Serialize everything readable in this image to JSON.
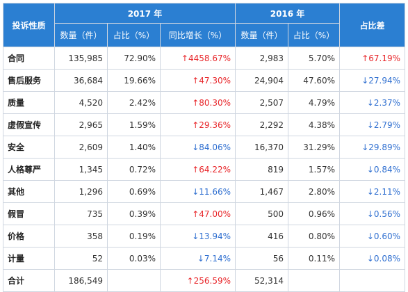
{
  "header": {
    "category": "投诉性质",
    "year2017": "2017 年",
    "year2016": "2016 年",
    "change": "占比差",
    "cols2017": [
      "数量（件）",
      "占比（%）",
      "同比增长（%）"
    ],
    "cols2016": [
      "数量（件）",
      "占比（%）"
    ]
  },
  "rows": [
    {
      "name": "合同",
      "q17": "135,985",
      "p17": "72.90%",
      "g": "↑4458.67%",
      "gdir": "up",
      "q16": "2,983",
      "p16": "5.70%",
      "d": "↑67.19%",
      "ddir": "up"
    },
    {
      "name": "售后服务",
      "q17": "36,684",
      "p17": "19.66%",
      "g": "↑47.30%",
      "gdir": "up",
      "q16": "24,904",
      "p16": "47.60%",
      "d": "↓27.94%",
      "ddir": "down"
    },
    {
      "name": "质量",
      "q17": "4,520",
      "p17": "2.42%",
      "g": "↑80.30%",
      "gdir": "up",
      "q16": "2,507",
      "p16": "4.79%",
      "d": "↓2.37%",
      "ddir": "down"
    },
    {
      "name": "虚假宣传",
      "q17": "2,965",
      "p17": "1.59%",
      "g": "↑29.36%",
      "gdir": "up",
      "q16": "2,292",
      "p16": "4.38%",
      "d": "↓2.79%",
      "ddir": "down"
    },
    {
      "name": "安全",
      "q17": "2,609",
      "p17": "1.40%",
      "g": "↓84.06%",
      "gdir": "down",
      "q16": "16,370",
      "p16": "31.29%",
      "d": "↓29.89%",
      "ddir": "down"
    },
    {
      "name": "人格尊严",
      "q17": "1,345",
      "p17": "0.72%",
      "g": "↑64.22%",
      "gdir": "up",
      "q16": "819",
      "p16": "1.57%",
      "d": "↓0.84%",
      "ddir": "down"
    },
    {
      "name": "其他",
      "q17": "1,296",
      "p17": "0.69%",
      "g": "↓11.66%",
      "gdir": "down",
      "q16": "1,467",
      "p16": "2.80%",
      "d": "↓2.11%",
      "ddir": "down"
    },
    {
      "name": "假冒",
      "q17": "735",
      "p17": "0.39%",
      "g": "↑47.00%",
      "gdir": "up",
      "q16": "500",
      "p16": "0.96%",
      "d": "↓0.56%",
      "ddir": "down"
    },
    {
      "name": "价格",
      "q17": "358",
      "p17": "0.19%",
      "g": "↓13.94%",
      "gdir": "down",
      "q16": "416",
      "p16": "0.80%",
      "d": "↓0.60%",
      "ddir": "down"
    },
    {
      "name": "计量",
      "q17": "52",
      "p17": "0.03%",
      "g": "↓7.14%",
      "gdir": "down",
      "q16": "56",
      "p16": "0.11%",
      "d": "↓0.08%",
      "ddir": "down"
    },
    {
      "name": "合计",
      "q17": "186,549",
      "p17": "",
      "g": "↑256.59%",
      "gdir": "up",
      "q16": "52,314",
      "p16": "",
      "d": "",
      "ddir": ""
    }
  ],
  "colors": {
    "header_bg": "#2b7fd2",
    "up": "#e8262a",
    "down": "#2f6fd0"
  }
}
